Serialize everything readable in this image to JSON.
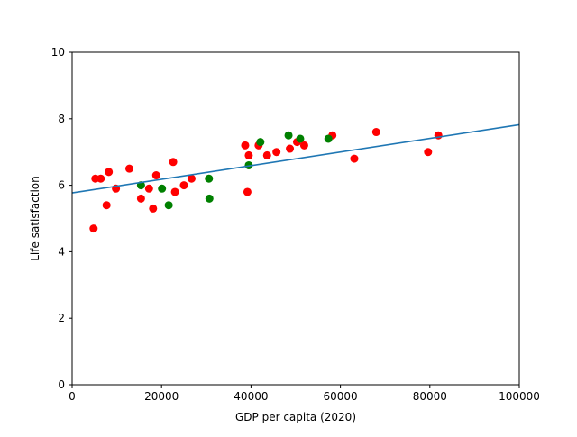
{
  "chart_data": {
    "type": "scatter",
    "title": "",
    "xlabel": "GDP per capita (2020)",
    "ylabel": "Life satisfaction",
    "xlim": [
      0,
      100000
    ],
    "ylim": [
      0,
      10
    ],
    "grid": false,
    "legend": "none",
    "x_ticks": [
      0,
      20000,
      40000,
      60000,
      80000,
      100000
    ],
    "x_tick_labels": [
      "0",
      "20000",
      "40000",
      "60000",
      "80000",
      "100000"
    ],
    "y_ticks": [
      0,
      2,
      4,
      6,
      8,
      10
    ],
    "y_tick_labels": [
      "0",
      "2",
      "4",
      "6",
      "8",
      "10"
    ],
    "series": [
      {
        "color": "#ff0000",
        "points": [
          [
            4800,
            4.7
          ],
          [
            5200,
            6.2
          ],
          [
            6400,
            6.2
          ],
          [
            7700,
            5.4
          ],
          [
            8200,
            6.4
          ],
          [
            9800,
            5.9
          ],
          [
            12800,
            6.5
          ],
          [
            15400,
            5.6
          ],
          [
            17200,
            5.9
          ],
          [
            18100,
            5.3
          ],
          [
            18800,
            6.3
          ],
          [
            22600,
            6.7
          ],
          [
            23000,
            5.8
          ],
          [
            25000,
            6.0
          ],
          [
            26700,
            6.2
          ],
          [
            38700,
            7.2
          ],
          [
            39200,
            5.8
          ],
          [
            39500,
            6.9
          ],
          [
            41700,
            7.2
          ],
          [
            43600,
            6.9
          ],
          [
            45700,
            7.0
          ],
          [
            48700,
            7.1
          ],
          [
            50300,
            7.3
          ],
          [
            51900,
            7.2
          ],
          [
            58200,
            7.5
          ],
          [
            63100,
            6.8
          ],
          [
            68000,
            7.6
          ],
          [
            79600,
            7.0
          ],
          [
            81900,
            7.5
          ]
        ]
      },
      {
        "color": "#008000",
        "points": [
          [
            15400,
            6.0
          ],
          [
            20100,
            5.9
          ],
          [
            21600,
            5.4
          ],
          [
            30600,
            6.2
          ],
          [
            30700,
            5.6
          ],
          [
            39500,
            6.6
          ],
          [
            42100,
            7.3
          ],
          [
            48400,
            7.5
          ],
          [
            51000,
            7.4
          ],
          [
            57300,
            7.4
          ]
        ]
      }
    ],
    "trend_line": {
      "color": "#1f77b4",
      "x": [
        0,
        100000
      ],
      "y": [
        5.77,
        7.82
      ]
    }
  }
}
